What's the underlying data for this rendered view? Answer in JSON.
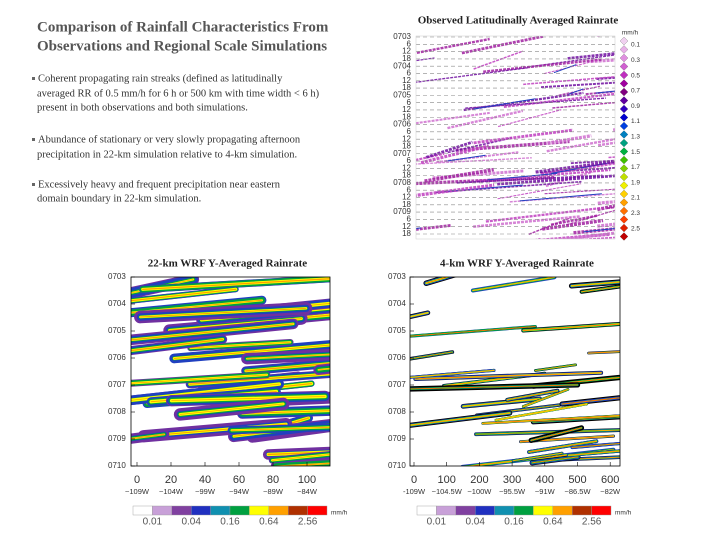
{
  "title": [
    "Comparison of Rainfall Characteristics From",
    "Observations and Regional Scale Simulations"
  ],
  "bullets": [
    [
      "Coherent propagating rain streaks (defined as latitudinally",
      "averaged RR of 0.5 mm/h for 6 h or 500 km with time width < 6 h)",
      "present in both observations and both simulations."
    ],
    [
      "Abundance of stationary or very slowly propagating afternoon",
      " precipitation in 22-km simulation relative to 4-km simulation."
    ],
    [
      "Excessively heavy and frequent precipitation near eastern",
      "domain boundary in 22-km simulation."
    ]
  ],
  "panels": [
    {
      "title": "Observed Latitudinally Averaged Rainrate",
      "y_labels": [
        "0703",
        "6",
        "12",
        "18",
        "0704",
        "6",
        "12",
        "18",
        "0705",
        "6",
        "12",
        "18",
        "0706",
        "6",
        "12",
        "18",
        "0707",
        "6",
        "12",
        "18",
        "0708",
        "6",
        "12",
        "18",
        "0709",
        "6",
        "12",
        "18"
      ],
      "legend_unit": "mm/h",
      "legend_labels": [
        "0.1",
        "0.3",
        "0.5",
        "0.7",
        "0.9",
        "1.1",
        "1.3",
        "1.5",
        "1.7",
        "1.9",
        "2.1",
        "2.3",
        "2.5"
      ]
    },
    {
      "title": "22-km WRF Y-Averaged Rainrate",
      "y_labels": [
        "0703",
        "0704",
        "0705",
        "0706",
        "0707",
        "0708",
        "0709",
        "0710"
      ],
      "x_ticks": [
        "0",
        "20",
        "40",
        "60",
        "80",
        "100"
      ],
      "x_sublabels": [
        "~109W",
        "~104W",
        "~99W",
        "~94W",
        "~89W",
        "~84W"
      ],
      "legend_labels": [
        "0.01",
        "0.04",
        "0.16",
        "0.64",
        "2.56"
      ],
      "legend_unit": "mm/h"
    },
    {
      "title": "4-km WRF Y-Averaged Rainrate",
      "y_labels": [
        "0703",
        "0704",
        "0705",
        "0706",
        "0707",
        "0708",
        "0709",
        "0710"
      ],
      "x_ticks": [
        "0",
        "100",
        "200",
        "300",
        "400",
        "500",
        "600"
      ],
      "x_sublabels": [
        "-109W",
        "~104.5W",
        "~100W",
        "~95.5W",
        "~91W",
        "~86.5W",
        "~82W"
      ],
      "legend_labels": [
        "0.01",
        "0.04",
        "0.16",
        "0.64",
        "2.56"
      ],
      "legend_unit": "mm/h"
    }
  ]
}
